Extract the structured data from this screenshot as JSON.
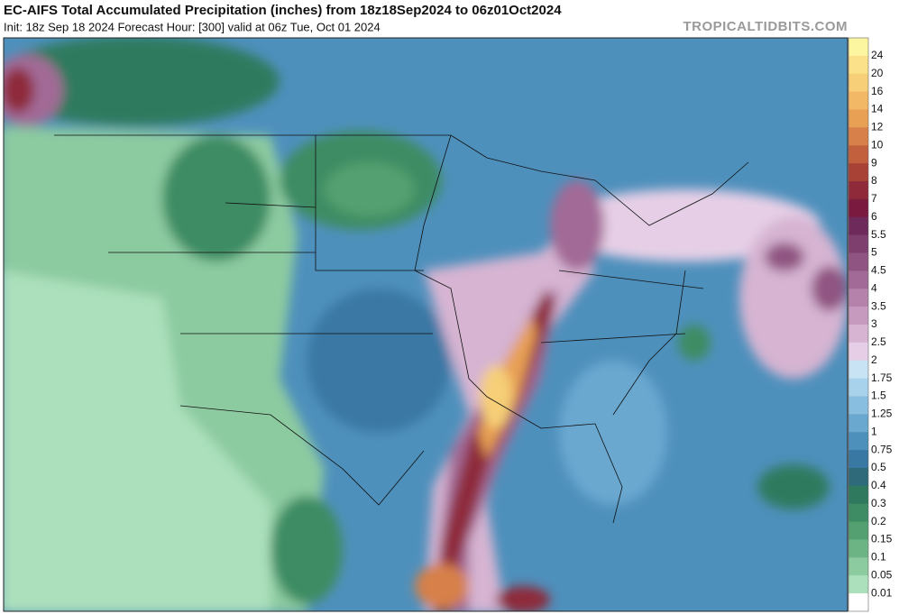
{
  "header": {
    "title": "EC-AIFS Total Accumulated Precipitation (inches) from 18z18Sep2024 to 06z01Oct2024",
    "subtitle": "Init: 18z Sep 18 2024   Forecast Hour: [300]   valid at 06z Tue, Oct 01 2024",
    "watermark": "TROPICALTIDBITS.COM"
  },
  "colorbar": {
    "labels": [
      24,
      20,
      16,
      14,
      12,
      10,
      9,
      8,
      7,
      6,
      5.5,
      5,
      4.5,
      4,
      3.5,
      3,
      2.5,
      2,
      1.75,
      1.5,
      1.25,
      1,
      0.75,
      0.5,
      0.4,
      0.3,
      0.2,
      0.15,
      0.1,
      0.05,
      0.01
    ],
    "colors": [
      "#fdf6a0",
      "#fbe28a",
      "#f6cf78",
      "#f2b865",
      "#e8a055",
      "#d7804a",
      "#c2603e",
      "#a84236",
      "#8e2a3a",
      "#7a1a3e",
      "#6e2a5a",
      "#7e3e6e",
      "#905482",
      "#a26a96",
      "#b482aa",
      "#c69abe",
      "#d6b4d2",
      "#e6cfe6",
      "#c8e4f4",
      "#a8d2ec",
      "#88bedf",
      "#6aa8d0",
      "#4e90bc",
      "#3a78a4",
      "#2e6a7a",
      "#2f7a5e",
      "#3e8c64",
      "#54a070",
      "#6cb484",
      "#8ccaa0",
      "#ace0bc",
      "#ffffff"
    ]
  }
}
